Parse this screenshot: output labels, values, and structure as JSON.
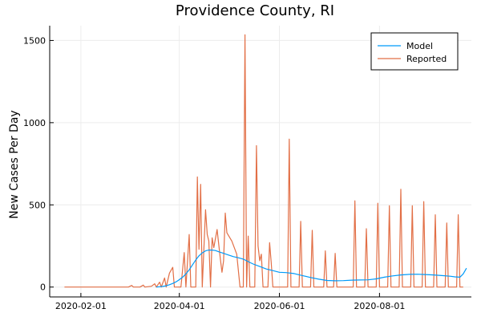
{
  "chart_data": {
    "type": "line",
    "title": "Providence County, RI",
    "xlabel": "",
    "ylabel": "New Cases Per Day",
    "x_range": [
      "2020-01-13",
      "2020-09-26"
    ],
    "ylim": [
      -60,
      1590
    ],
    "yticks": [
      0,
      500,
      1000,
      1500
    ],
    "xticks": [
      "2020-02-01",
      "2020-04-01",
      "2020-06-01",
      "2020-08-01"
    ],
    "grid": true,
    "legend_position": "top-right",
    "series": [
      {
        "name": "Model",
        "color": "#009af9",
        "points": [
          [
            "2020-03-18",
            0
          ],
          [
            "2020-03-20",
            2
          ],
          [
            "2020-03-22",
            4
          ],
          [
            "2020-03-24",
            8
          ],
          [
            "2020-03-26",
            14
          ],
          [
            "2020-03-28",
            22
          ],
          [
            "2020-03-30",
            32
          ],
          [
            "2020-04-01",
            45
          ],
          [
            "2020-04-03",
            60
          ],
          [
            "2020-04-05",
            80
          ],
          [
            "2020-04-07",
            105
          ],
          [
            "2020-04-09",
            135
          ],
          [
            "2020-04-11",
            165
          ],
          [
            "2020-04-13",
            190
          ],
          [
            "2020-04-15",
            208
          ],
          [
            "2020-04-17",
            220
          ],
          [
            "2020-04-19",
            225
          ],
          [
            "2020-04-21",
            225
          ],
          [
            "2020-04-23",
            222
          ],
          [
            "2020-04-25",
            215
          ],
          [
            "2020-04-28",
            205
          ],
          [
            "2020-05-01",
            195
          ],
          [
            "2020-05-04",
            185
          ],
          [
            "2020-05-07",
            178
          ],
          [
            "2020-05-10",
            170
          ],
          [
            "2020-05-13",
            155
          ],
          [
            "2020-05-16",
            140
          ],
          [
            "2020-05-20",
            125
          ],
          [
            "2020-05-24",
            110
          ],
          [
            "2020-05-28",
            100
          ],
          [
            "2020-06-01",
            90
          ],
          [
            "2020-06-05",
            88
          ],
          [
            "2020-06-10",
            82
          ],
          [
            "2020-06-15",
            70
          ],
          [
            "2020-06-20",
            58
          ],
          [
            "2020-06-25",
            48
          ],
          [
            "2020-06-30",
            40
          ],
          [
            "2020-07-05",
            38
          ],
          [
            "2020-07-10",
            39
          ],
          [
            "2020-07-15",
            42
          ],
          [
            "2020-07-20",
            43
          ],
          [
            "2020-07-25",
            44
          ],
          [
            "2020-07-30",
            50
          ],
          [
            "2020-08-04",
            60
          ],
          [
            "2020-08-09",
            68
          ],
          [
            "2020-08-14",
            74
          ],
          [
            "2020-08-19",
            77
          ],
          [
            "2020-08-24",
            78
          ],
          [
            "2020-08-29",
            76
          ],
          [
            "2020-09-03",
            74
          ],
          [
            "2020-09-08",
            70
          ],
          [
            "2020-09-13",
            66
          ],
          [
            "2020-09-16",
            62
          ],
          [
            "2020-09-19",
            60
          ],
          [
            "2020-09-21",
            80
          ],
          [
            "2020-09-23",
            115
          ]
        ]
      },
      {
        "name": "Reported",
        "color": "#e26f46",
        "points": [
          [
            "2020-01-22",
            0
          ],
          [
            "2020-02-28",
            0
          ],
          [
            "2020-03-01",
            0
          ],
          [
            "2020-03-03",
            10
          ],
          [
            "2020-03-04",
            0
          ],
          [
            "2020-03-08",
            0
          ],
          [
            "2020-03-10",
            12
          ],
          [
            "2020-03-11",
            0
          ],
          [
            "2020-03-15",
            5
          ],
          [
            "2020-03-17",
            20
          ],
          [
            "2020-03-18",
            0
          ],
          [
            "2020-03-20",
            30
          ],
          [
            "2020-03-21",
            0
          ],
          [
            "2020-03-23",
            55
          ],
          [
            "2020-03-24",
            0
          ],
          [
            "2020-03-26",
            85
          ],
          [
            "2020-03-28",
            120
          ],
          [
            "2020-03-29",
            0
          ],
          [
            "2020-04-02",
            0
          ],
          [
            "2020-04-04",
            210
          ],
          [
            "2020-04-05",
            0
          ],
          [
            "2020-04-07",
            320
          ],
          [
            "2020-04-08",
            0
          ],
          [
            "2020-04-11",
            0
          ],
          [
            "2020-04-12",
            670
          ],
          [
            "2020-04-13",
            230
          ],
          [
            "2020-04-14",
            625
          ],
          [
            "2020-04-15",
            0
          ],
          [
            "2020-04-17",
            470
          ],
          [
            "2020-04-18",
            320
          ],
          [
            "2020-04-19",
            280
          ],
          [
            "2020-04-20",
            0
          ],
          [
            "2020-04-21",
            300
          ],
          [
            "2020-04-22",
            240
          ],
          [
            "2020-04-24",
            350
          ],
          [
            "2020-04-26",
            170
          ],
          [
            "2020-04-27",
            90
          ],
          [
            "2020-04-28",
            160
          ],
          [
            "2020-04-29",
            450
          ],
          [
            "2020-04-30",
            330
          ],
          [
            "2020-05-03",
            280
          ],
          [
            "2020-05-06",
            200
          ],
          [
            "2020-05-08",
            0
          ],
          [
            "2020-05-10",
            0
          ],
          [
            "2020-05-11",
            1535
          ],
          [
            "2020-05-12",
            0
          ],
          [
            "2020-05-13",
            310
          ],
          [
            "2020-05-14",
            0
          ],
          [
            "2020-05-17",
            0
          ],
          [
            "2020-05-18",
            860
          ],
          [
            "2020-05-19",
            250
          ],
          [
            "2020-05-20",
            160
          ],
          [
            "2020-05-21",
            200
          ],
          [
            "2020-05-22",
            0
          ],
          [
            "2020-05-25",
            0
          ],
          [
            "2020-05-26",
            270
          ],
          [
            "2020-05-27",
            150
          ],
          [
            "2020-05-28",
            0
          ],
          [
            "2020-06-06",
            0
          ],
          [
            "2020-06-07",
            900
          ],
          [
            "2020-06-08",
            0
          ],
          [
            "2020-06-13",
            0
          ],
          [
            "2020-06-14",
            400
          ],
          [
            "2020-06-15",
            0
          ],
          [
            "2020-06-20",
            0
          ],
          [
            "2020-06-21",
            345
          ],
          [
            "2020-06-22",
            0
          ],
          [
            "2020-06-28",
            0
          ],
          [
            "2020-06-29",
            220
          ],
          [
            "2020-06-30",
            0
          ],
          [
            "2020-07-04",
            0
          ],
          [
            "2020-07-05",
            205
          ],
          [
            "2020-07-06",
            0
          ],
          [
            "2020-07-16",
            0
          ],
          [
            "2020-07-17",
            525
          ],
          [
            "2020-07-18",
            0
          ],
          [
            "2020-07-23",
            0
          ],
          [
            "2020-07-24",
            355
          ],
          [
            "2020-07-25",
            0
          ],
          [
            "2020-07-30",
            0
          ],
          [
            "2020-07-31",
            510
          ],
          [
            "2020-08-01",
            0
          ],
          [
            "2020-08-06",
            0
          ],
          [
            "2020-08-07",
            495
          ],
          [
            "2020-08-08",
            0
          ],
          [
            "2020-08-13",
            0
          ],
          [
            "2020-08-14",
            595
          ],
          [
            "2020-08-15",
            0
          ],
          [
            "2020-08-20",
            0
          ],
          [
            "2020-08-21",
            495
          ],
          [
            "2020-08-22",
            0
          ],
          [
            "2020-08-27",
            0
          ],
          [
            "2020-08-28",
            520
          ],
          [
            "2020-08-29",
            0
          ],
          [
            "2020-09-03",
            0
          ],
          [
            "2020-09-04",
            440
          ],
          [
            "2020-09-05",
            0
          ],
          [
            "2020-09-10",
            0
          ],
          [
            "2020-09-11",
            390
          ],
          [
            "2020-09-12",
            0
          ],
          [
            "2020-09-17",
            0
          ],
          [
            "2020-09-18",
            440
          ],
          [
            "2020-09-19",
            0
          ],
          [
            "2020-09-21",
            0
          ]
        ]
      }
    ]
  }
}
